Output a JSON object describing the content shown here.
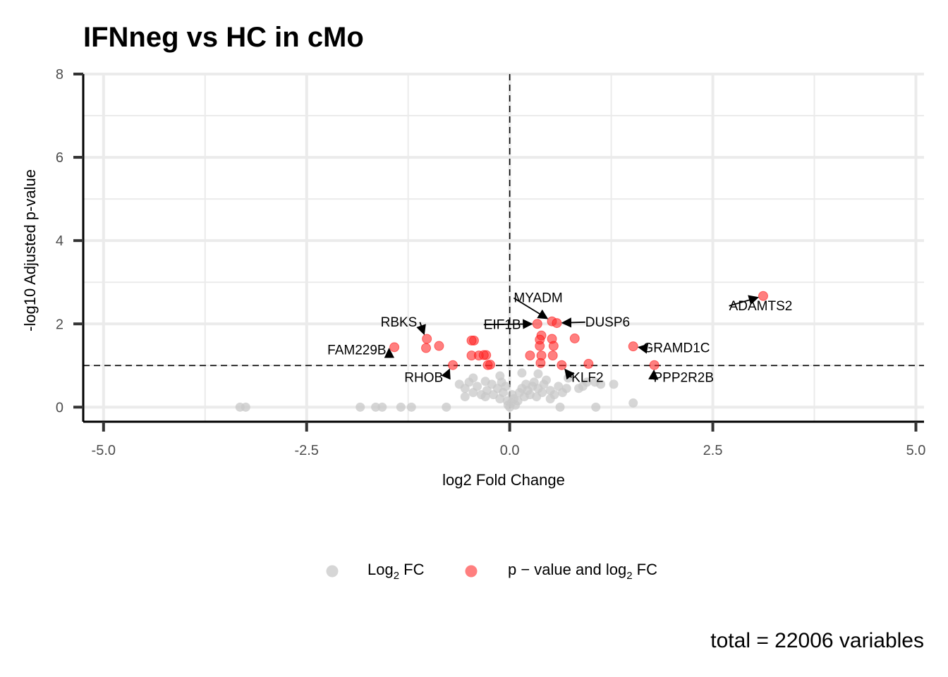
{
  "chart_data": {
    "type": "scatter",
    "title": "IFNneg vs HC in cMo",
    "xlabel": "log2 Fold Change",
    "ylabel": "-log10 Adjusted p-value",
    "xlim": [
      -5.25,
      5.1
    ],
    "ylim": [
      -0.35,
      8
    ],
    "x_ticks": [
      -5.0,
      -2.5,
      0.0,
      2.5,
      5.0
    ],
    "x_tick_labels": [
      "-5.0",
      "-2.5",
      "0.0",
      "2.5",
      "5.0"
    ],
    "y_ticks": [
      0,
      2,
      4,
      6,
      8
    ],
    "y_tick_labels": [
      "0",
      "2",
      "4",
      "6",
      "8"
    ],
    "grid": true,
    "thresholds": {
      "pvalue_line": 1.0,
      "fc_line": 0.0
    },
    "colors": {
      "ns": "#c8c8c8",
      "sig": "#ff2a2a"
    },
    "legend": {
      "position": "bottom",
      "entries": [
        {
          "label_main": "Log",
          "label_sub": "2",
          "label_tail": " FC",
          "color": "#c8c8c8"
        },
        {
          "label_main": "p − value and log",
          "label_sub": "2",
          "label_tail": " FC",
          "color": "#ff2a2a"
        }
      ]
    },
    "caption": "total = 22006 variables",
    "series": [
      {
        "name": "Log2 FC",
        "points": [
          [
            -3.32,
            0.0
          ],
          [
            -3.25,
            0.0
          ],
          [
            -1.84,
            0.0
          ],
          [
            -1.65,
            0.0
          ],
          [
            -1.57,
            0.0
          ],
          [
            -1.34,
            0.0
          ],
          [
            -1.21,
            0.0
          ],
          [
            -0.78,
            0.0
          ],
          [
            0.62,
            0.0
          ],
          [
            1.06,
            0.0
          ],
          [
            1.52,
            0.1
          ],
          [
            -0.62,
            0.55
          ],
          [
            -0.55,
            0.45
          ],
          [
            -0.5,
            0.6
          ],
          [
            -0.45,
            0.35
          ],
          [
            -0.4,
            0.5
          ],
          [
            -0.35,
            0.3
          ],
          [
            -0.3,
            0.62
          ],
          [
            -0.28,
            0.4
          ],
          [
            -0.22,
            0.55
          ],
          [
            -0.2,
            0.3
          ],
          [
            -0.15,
            0.45
          ],
          [
            -0.12,
            0.2
          ],
          [
            -0.1,
            0.6
          ],
          [
            -0.08,
            0.35
          ],
          [
            -0.05,
            0.5
          ],
          [
            -0.03,
            0.15
          ],
          [
            -0.02,
            0.05
          ],
          [
            0.0,
            0.0
          ],
          [
            0.02,
            0.1
          ],
          [
            0.03,
            0.3
          ],
          [
            0.05,
            0.2
          ],
          [
            0.07,
            0.05
          ],
          [
            0.1,
            0.15
          ],
          [
            0.12,
            0.35
          ],
          [
            0.15,
            0.45
          ],
          [
            0.18,
            0.25
          ],
          [
            0.2,
            0.55
          ],
          [
            0.22,
            0.4
          ],
          [
            0.25,
            0.3
          ],
          [
            0.28,
            0.5
          ],
          [
            0.3,
            0.6
          ],
          [
            0.33,
            0.25
          ],
          [
            0.35,
            0.45
          ],
          [
            0.4,
            0.35
          ],
          [
            0.42,
            0.55
          ],
          [
            0.45,
            0.65
          ],
          [
            0.5,
            0.4
          ],
          [
            0.55,
            0.3
          ],
          [
            0.6,
            0.5
          ],
          [
            0.65,
            0.35
          ],
          [
            0.7,
            0.45
          ],
          [
            0.72,
            0.7
          ],
          [
            0.85,
            0.45
          ],
          [
            0.9,
            0.5
          ],
          [
            0.95,
            0.6
          ],
          [
            1.05,
            0.6
          ],
          [
            1.12,
            0.55
          ],
          [
            1.28,
            0.55
          ],
          [
            0.15,
            0.82
          ],
          [
            -0.45,
            0.7
          ],
          [
            0.35,
            0.8
          ],
          [
            -0.12,
            0.75
          ],
          [
            -0.3,
            0.25
          ],
          [
            0.5,
            0.2
          ],
          [
            -0.55,
            0.25
          ]
        ]
      },
      {
        "name": "p − value and log2 FC",
        "points": [
          [
            3.12,
            2.67
          ],
          [
            1.52,
            1.46
          ],
          [
            1.78,
            1.01
          ],
          [
            0.52,
            2.06
          ],
          [
            0.58,
            2.02
          ],
          [
            0.34,
            2.0
          ],
          [
            0.39,
            1.72
          ],
          [
            0.37,
            1.62
          ],
          [
            0.37,
            1.47
          ],
          [
            0.52,
            1.64
          ],
          [
            0.54,
            1.47
          ],
          [
            0.8,
            1.65
          ],
          [
            0.25,
            1.24
          ],
          [
            0.39,
            1.24
          ],
          [
            0.53,
            1.24
          ],
          [
            0.38,
            1.06
          ],
          [
            0.64,
            1.01
          ],
          [
            0.97,
            1.04
          ],
          [
            -1.42,
            1.44
          ],
          [
            -1.02,
            1.64
          ],
          [
            -1.03,
            1.42
          ],
          [
            -0.87,
            1.47
          ],
          [
            -0.44,
            1.6
          ],
          [
            -0.47,
            1.6
          ],
          [
            -0.47,
            1.24
          ],
          [
            -0.38,
            1.24
          ],
          [
            -0.29,
            1.25
          ],
          [
            -0.32,
            1.25
          ],
          [
            -0.24,
            1.02
          ],
          [
            -0.27,
            1.01
          ],
          [
            -0.7,
            1.01
          ]
        ]
      }
    ],
    "annotations": [
      {
        "text": "ADAMTS2",
        "x": 3.12,
        "y": 2.67,
        "lx": 2.7,
        "ly": 2.33,
        "anchor": "start"
      },
      {
        "text": "MYADM",
        "x": 0.52,
        "y": 2.06,
        "lx": 0.05,
        "ly": 2.52,
        "anchor": "start"
      },
      {
        "text": "DUSP6",
        "x": 0.58,
        "y": 2.02,
        "lx": 0.93,
        "ly": 1.94,
        "anchor": "start"
      },
      {
        "text": "EIF1B",
        "x": 0.34,
        "y": 2.0,
        "lx": -0.32,
        "ly": 1.88,
        "anchor": "start"
      },
      {
        "text": "RBKS",
        "x": -1.02,
        "y": 1.64,
        "lx": -1.14,
        "ly": 1.94,
        "anchor": "end"
      },
      {
        "text": "GRAMD1C",
        "x": 1.52,
        "y": 1.46,
        "lx": 1.64,
        "ly": 1.32,
        "anchor": "start"
      },
      {
        "text": "FAM229B",
        "x": -1.42,
        "y": 1.44,
        "lx": -1.52,
        "ly": 1.27,
        "anchor": "end"
      },
      {
        "text": "RHOB",
        "x": -0.7,
        "y": 1.01,
        "lx": -0.82,
        "ly": 0.61,
        "anchor": "end"
      },
      {
        "text": "KLF2",
        "x": 0.64,
        "y": 1.01,
        "lx": 0.76,
        "ly": 0.61,
        "anchor": "start"
      },
      {
        "text": "PPP2R2B",
        "x": 1.78,
        "y": 1.01,
        "lx": 1.77,
        "ly": 0.61,
        "anchor": "start"
      }
    ]
  }
}
